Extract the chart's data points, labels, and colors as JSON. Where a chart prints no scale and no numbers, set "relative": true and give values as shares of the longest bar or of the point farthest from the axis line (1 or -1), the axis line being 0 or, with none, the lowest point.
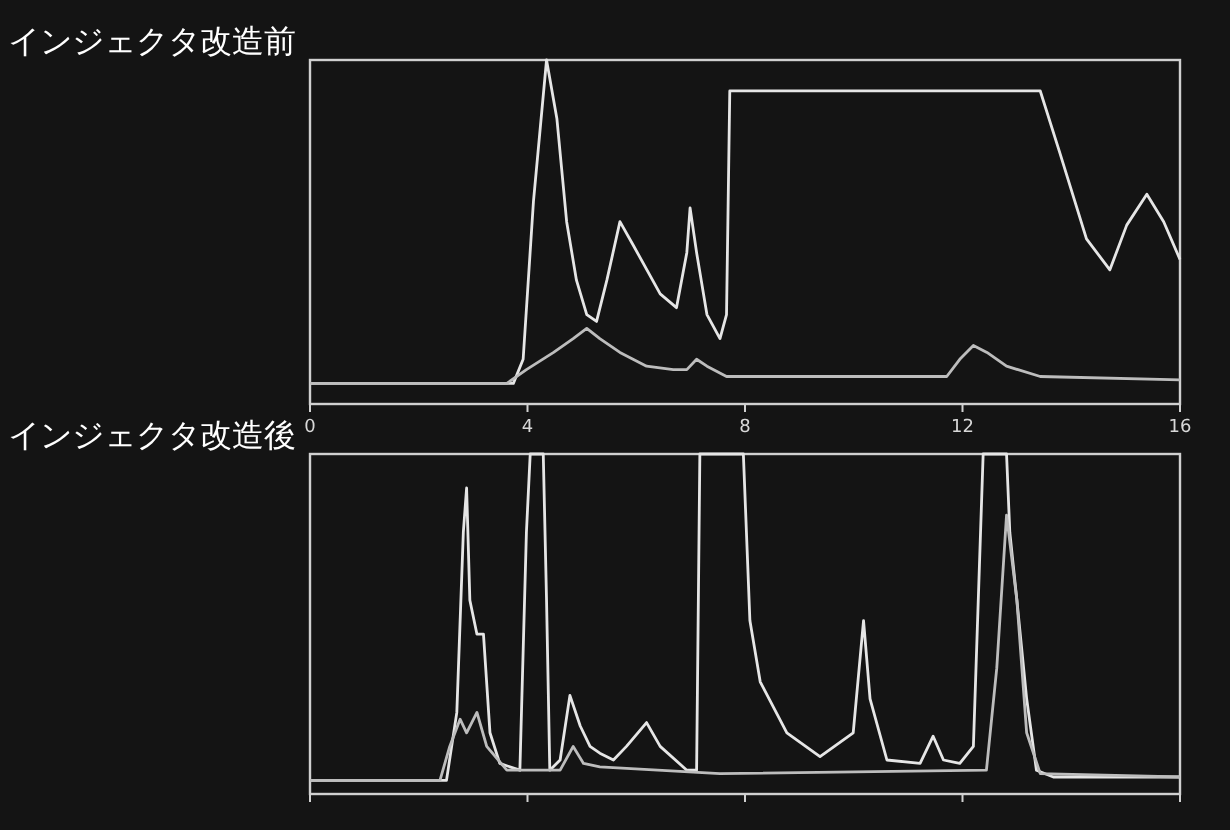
{
  "chart_data": [
    {
      "type": "line",
      "title": "インジェクタ改造前",
      "relative": true,
      "xlim": [
        0,
        16
      ],
      "xticks": [
        0,
        4,
        8,
        12,
        16
      ],
      "tick_labels": "x",
      "series": [
        {
          "color": "#e6e6e6",
          "x": [
            0,
            3.74,
            3.92,
            4.11,
            4.35,
            4.54,
            4.72,
            4.9,
            5.09,
            5.27,
            5.46,
            5.7,
            5.95,
            6.44,
            6.74,
            6.93,
            6.99,
            7.11,
            7.3,
            7.54,
            7.66,
            7.72,
            13.43,
            13.79,
            14.28,
            14.71,
            15.02,
            15.39,
            15.7,
            16
          ],
          "values": [
            0.06,
            0.06,
            0.13,
            0.59,
            1,
            0.83,
            0.53,
            0.36,
            0.26,
            0.24,
            0.36,
            0.53,
            0.46,
            0.32,
            0.28,
            0.44,
            0.57,
            0.44,
            0.26,
            0.19,
            0.26,
            0.91,
            0.91,
            0.73,
            0.48,
            0.39,
            0.52,
            0.61,
            0.53,
            0.42
          ]
        },
        {
          "color": "#bdbdbd",
          "x": [
            0,
            3.62,
            3.98,
            4.48,
            4.84,
            5.09,
            5.33,
            5.7,
            6.19,
            6.68,
            6.93,
            7.11,
            7.3,
            7.66,
            11.71,
            11.95,
            12.2,
            12.45,
            12.81,
            13.43,
            16
          ],
          "values": [
            0.06,
            0.06,
            0.1,
            0.15,
            0.19,
            0.22,
            0.19,
            0.15,
            0.11,
            0.1,
            0.1,
            0.13,
            0.11,
            0.08,
            0.08,
            0.13,
            0.17,
            0.15,
            0.11,
            0.08,
            0.07
          ]
        }
      ]
    },
    {
      "type": "line",
      "title": "インジェクタ改造後",
      "relative": true,
      "xlim": [
        0,
        16
      ],
      "xticks": [
        0,
        4,
        8,
        12,
        16
      ],
      "tick_labels": false,
      "series": [
        {
          "color": "#e6e6e6",
          "x": [
            0,
            2.51,
            2.7,
            2.82,
            2.88,
            2.94,
            3.07,
            3.19,
            3.31,
            3.49,
            3.86,
            3.98,
            4.05,
            4.29,
            4.35,
            4.41,
            4.6,
            4.78,
            4.97,
            5.15,
            5.33,
            5.58,
            5.82,
            6.19,
            6.44,
            6.93,
            7.11,
            7.17,
            7.97,
            8.09,
            8.28,
            8.77,
            9.38,
            9.99,
            10.18,
            10.3,
            10.61,
            11.22,
            11.46,
            11.65,
            11.95,
            12.2,
            12.38,
            12.81,
            12.87,
            13,
            13.18,
            13.36,
            13.67,
            16
          ],
          "values": [
            0.04,
            0.04,
            0.24,
            0.77,
            0.9,
            0.57,
            0.47,
            0.47,
            0.18,
            0.09,
            0.07,
            0.77,
            1,
            1,
            0.57,
            0.07,
            0.1,
            0.29,
            0.2,
            0.14,
            0.12,
            0.1,
            0.14,
            0.21,
            0.14,
            0.07,
            0.07,
            1,
            1,
            0.51,
            0.33,
            0.18,
            0.11,
            0.18,
            0.51,
            0.28,
            0.1,
            0.09,
            0.17,
            0.1,
            0.09,
            0.14,
            1,
            1,
            0.77,
            0.57,
            0.28,
            0.07,
            0.05,
            0.05
          ]
        },
        {
          "color": "#bdbdbd",
          "x": [
            0,
            2.39,
            2.57,
            2.76,
            2.88,
            3.07,
            3.25,
            3.62,
            4.6,
            4.84,
            5.03,
            5.33,
            7.54,
            12.44,
            12.63,
            12.81,
            13,
            13.18,
            13.43,
            16
          ],
          "values": [
            0.04,
            0.04,
            0.14,
            0.22,
            0.18,
            0.24,
            0.14,
            0.07,
            0.07,
            0.14,
            0.09,
            0.08,
            0.06,
            0.07,
            0.37,
            0.82,
            0.57,
            0.18,
            0.06,
            0.05
          ]
        }
      ]
    }
  ]
}
